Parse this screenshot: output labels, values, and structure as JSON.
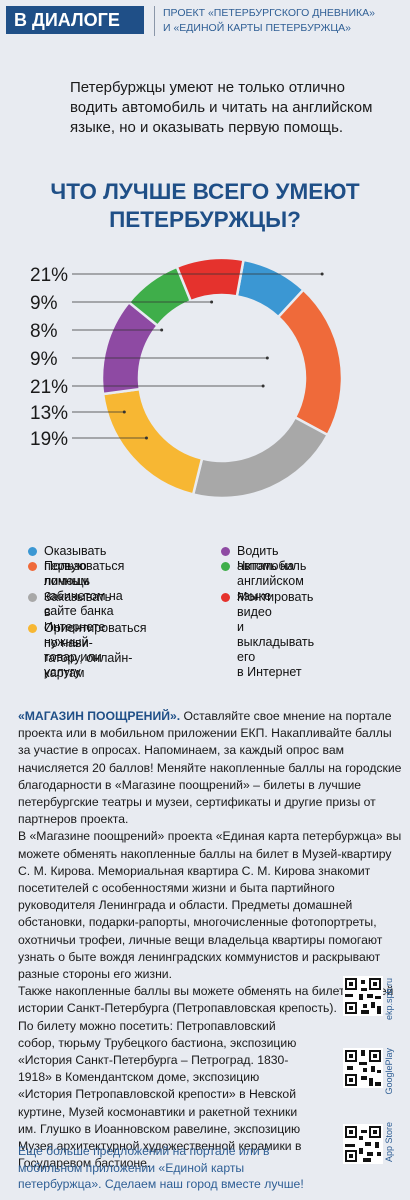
{
  "header": {
    "tag": "В ДИАЛОГЕ",
    "project_line1": "ПРОЕКТ «ПЕТЕРБУРГСКОГО ДНЕВНИКА»",
    "project_line2": "И «ЕДИНОЙ КАРТЫ ПЕТЕРБУРЖЦА»"
  },
  "intro": "Петербуржцы умеют не только отлично водить автомобиль и читать на английском языке, но и оказывать первую помощь.",
  "chart_title_line1": "ЧТО ЛУЧШЕ ВСЕГО УМЕЮТ",
  "chart_title_line2": "ПЕТЕРБУРЖЦЫ?",
  "chart_data": {
    "type": "pie",
    "donut": true,
    "slices": [
      {
        "label": "Оказывать первую помощь",
        "value": 9,
        "color": "#3b97d3"
      },
      {
        "label": "Пользоваться личным кабинетом на сайте банка",
        "value": 21,
        "color": "#ef6a3a"
      },
      {
        "label": "Заказывать в Интернете нужный товар или услугу",
        "value": 21,
        "color": "#a8a8a8"
      },
      {
        "label": "Ориентироваться по навигатору, онлайн-картам",
        "value": 19,
        "color": "#f7b733"
      },
      {
        "label": "Водить автомобиль",
        "value": 13,
        "color": "#8e4aa3"
      },
      {
        "label": "Читать на английском языке",
        "value": 8,
        "color": "#3fae4a"
      },
      {
        "label": "Монтировать видео и выкладывать его в Интернет",
        "value": 9,
        "color": "#e5322d"
      }
    ],
    "left_labels": [
      "21%",
      "9%",
      "8%",
      "9%",
      "21%",
      "13%",
      "19%"
    ],
    "legend": [
      {
        "text": "Оказывать первую помощь",
        "color": "#3b97d3"
      },
      {
        "text": "Пользоваться личным\nкабинетом на сайте банка",
        "color": "#ef6a3a"
      },
      {
        "text": "Заказывать в Интернете\nнужный товар или услугу",
        "color": "#a8a8a8"
      },
      {
        "text": "Ориентироваться по нави-\nгатору, онлайн-картам",
        "color": "#f7b733"
      },
      {
        "text": "Водить автомобиль",
        "color": "#8e4aa3"
      },
      {
        "text": "Читать на английском\nязыке",
        "color": "#3fae4a"
      },
      {
        "text": "Монтировать видео\nи выкладывать его\nв Интернет",
        "color": "#e5322d"
      }
    ]
  },
  "body": {
    "shop_heading": "«МАГАЗИН ПООЩРЕНИЙ».",
    "p1": " Оставляйте свое мнение на портале проекта или в мобильном приложении ЕКП. Накапливайте баллы за участие в опросах. Напоминаем, за каждый опрос вам начисляется 20 баллов! Меняйте накопленные баллы на городские благодарности в «Магазине поощрений» – билеты в лучшие петербургские театры и музеи, сертификаты и другие призы от партнеров проекта.",
    "p2": "В «Магазине поощрений» проекта «Единая карта петербуржца» вы можете обменять накопленные баллы на билет в Музей-квартиру С. М. Кирова. Мемориальная квартира С. М. Кирова знакомит посетителей с особенностями жизни и быта партийного руководителя Ленинграда и области. Предметы домашней обстановки, подарки-рапорты, многочисленные фотопортреты, охотничьи трофеи, личные вещи владельца квартиры помогают узнать о быте вождя ленинградских коммунистов и раскрывают разные стороны его жизни.",
    "p3": "Также накопленные баллы вы можете обменять на билет в Музей истории Санкт-Петербурга (Петропавловская крепость).",
    "p4": "По билету можно посетить: Петропавловский собор, тюрьму Трубецкого бастиона, экспозицию «История Санкт-Петербурга – Петроград. 1830-1918» в Комендантском доме, экспозицию «История Петропавловской крепости» в Невской куртине, Музей космонавтики и ракетной техники им. Глушко в Иоанновском равелине, экспозицию Музея архитектурной художественной керамики в Государевом бастионе."
  },
  "closing": "Еще больше предложений на портале или в мобильном приложении «Единой карты петербуржца». Сделаем наш город вместе лучше!",
  "qr": [
    {
      "label": "ekp.spb.ru",
      "icon": "qr-code-icon"
    },
    {
      "label": "GooglePlay",
      "icon": "qr-code-icon"
    },
    {
      "label": "App Store",
      "icon": "qr-code-icon"
    }
  ]
}
